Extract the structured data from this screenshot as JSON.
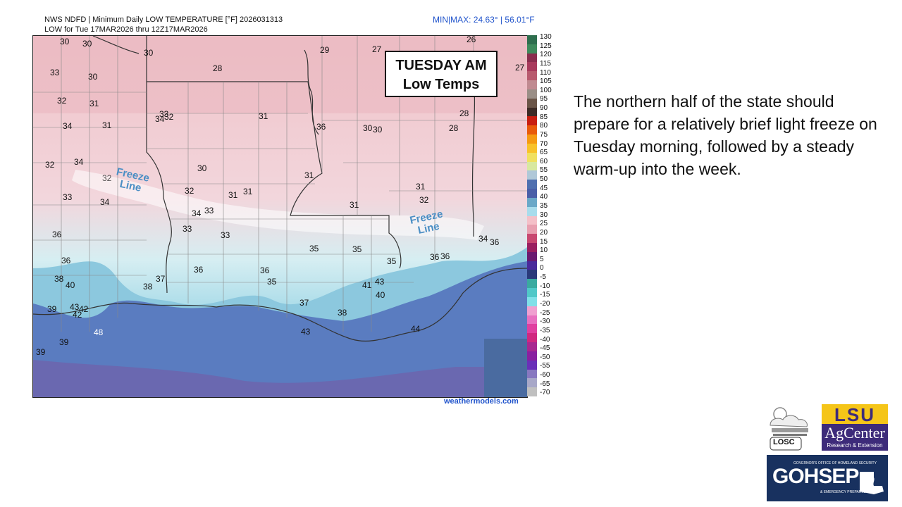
{
  "header": {
    "line1": "NWS NDFD | Minimum Daily LOW TEMPERATURE [°F]  2026031313",
    "line2": "LOW for Tue 17MAR2026 thru 12Z17MAR2026",
    "minmax": "MIN|MAX:  24.63°  | 56.01°F"
  },
  "title_box": {
    "line1": "TUESDAY AM",
    "line2": "Low Temps"
  },
  "freeze_labels": [
    {
      "line1": "Freeze",
      "line2": "Line"
    },
    {
      "line1": "Freeze",
      "line2": "Line"
    }
  ],
  "temps": [
    "30",
    "30",
    "30",
    "29",
    "27",
    "26",
    "27",
    "33",
    "30",
    "28",
    "32",
    "31",
    "33",
    "32",
    "34",
    "31",
    "31",
    "36",
    "30",
    "30",
    "28",
    "28",
    "34",
    "32",
    "30",
    "31",
    "32",
    "32",
    "31",
    "31",
    "31",
    "31",
    "32",
    "34",
    "34",
    "33",
    "33",
    "33",
    "36",
    "34",
    "35",
    "35",
    "36",
    "36",
    "36",
    "35",
    "33",
    "34",
    "36",
    "36",
    "38",
    "37",
    "36",
    "40",
    "38",
    "35",
    "41",
    "43",
    "40",
    "37",
    "39",
    "43",
    "42",
    "38",
    "42",
    "48",
    "44",
    "43",
    "39",
    "39"
  ],
  "scale_labels": [
    "130",
    "125",
    "120",
    "115",
    "110",
    "105",
    "100",
    "95",
    "90",
    "85",
    "80",
    "75",
    "70",
    "65",
    "60",
    "55",
    "50",
    "45",
    "40",
    "35",
    "30",
    "25",
    "20",
    "15",
    "10",
    "5",
    "0",
    "-5",
    "-10",
    "-15",
    "-20",
    "-25",
    "-30",
    "-35",
    "-40",
    "-45",
    "-50",
    "-55",
    "-60",
    "-65",
    "-70"
  ],
  "scale_colors": [
    "#2e6e4e",
    "#3f8a5c",
    "#8a2d4e",
    "#a83a5c",
    "#b85a6e",
    "#c08a90",
    "#9a8e86",
    "#6b5548",
    "#3d2b26",
    "#c81e10",
    "#e85a0a",
    "#f59a12",
    "#f8c22a",
    "#f0e060",
    "#d8e8a0",
    "#b0c8d8",
    "#5070b0",
    "#4a5fa8",
    "#6aa8c8",
    "#a8dcec",
    "#f4c0c8",
    "#e8a0b0",
    "#c84870",
    "#9a2060",
    "#6a1a70",
    "#4a2a9a",
    "#2a3a7a",
    "#3aaaa0",
    "#50c8c8",
    "#80e0e8",
    "#f0a0d0",
    "#e870c0",
    "#e040a0",
    "#d02880",
    "#a82890",
    "#8a20a0",
    "#6a30b8",
    "#8878c0",
    "#a8a8c8",
    "#c0c0c0"
  ],
  "credit": "weathermodels.com",
  "description": "The northern half of the state should prepare for a relatively brief light freeze on Tuesday morning, followed by a steady warm-up into the week.",
  "logos": {
    "losc": "LOSC",
    "lsu_top": "LSU",
    "lsu_main": "AgCenter",
    "lsu_sub": "Research & Extension",
    "gohsep_small": "GOVERNOR'S OFFICE OF HOMELAND SECURITY",
    "gohsep_main": "GOHSEP",
    "gohsep_sub": "& EMERGENCY PREPAREDNESS"
  }
}
